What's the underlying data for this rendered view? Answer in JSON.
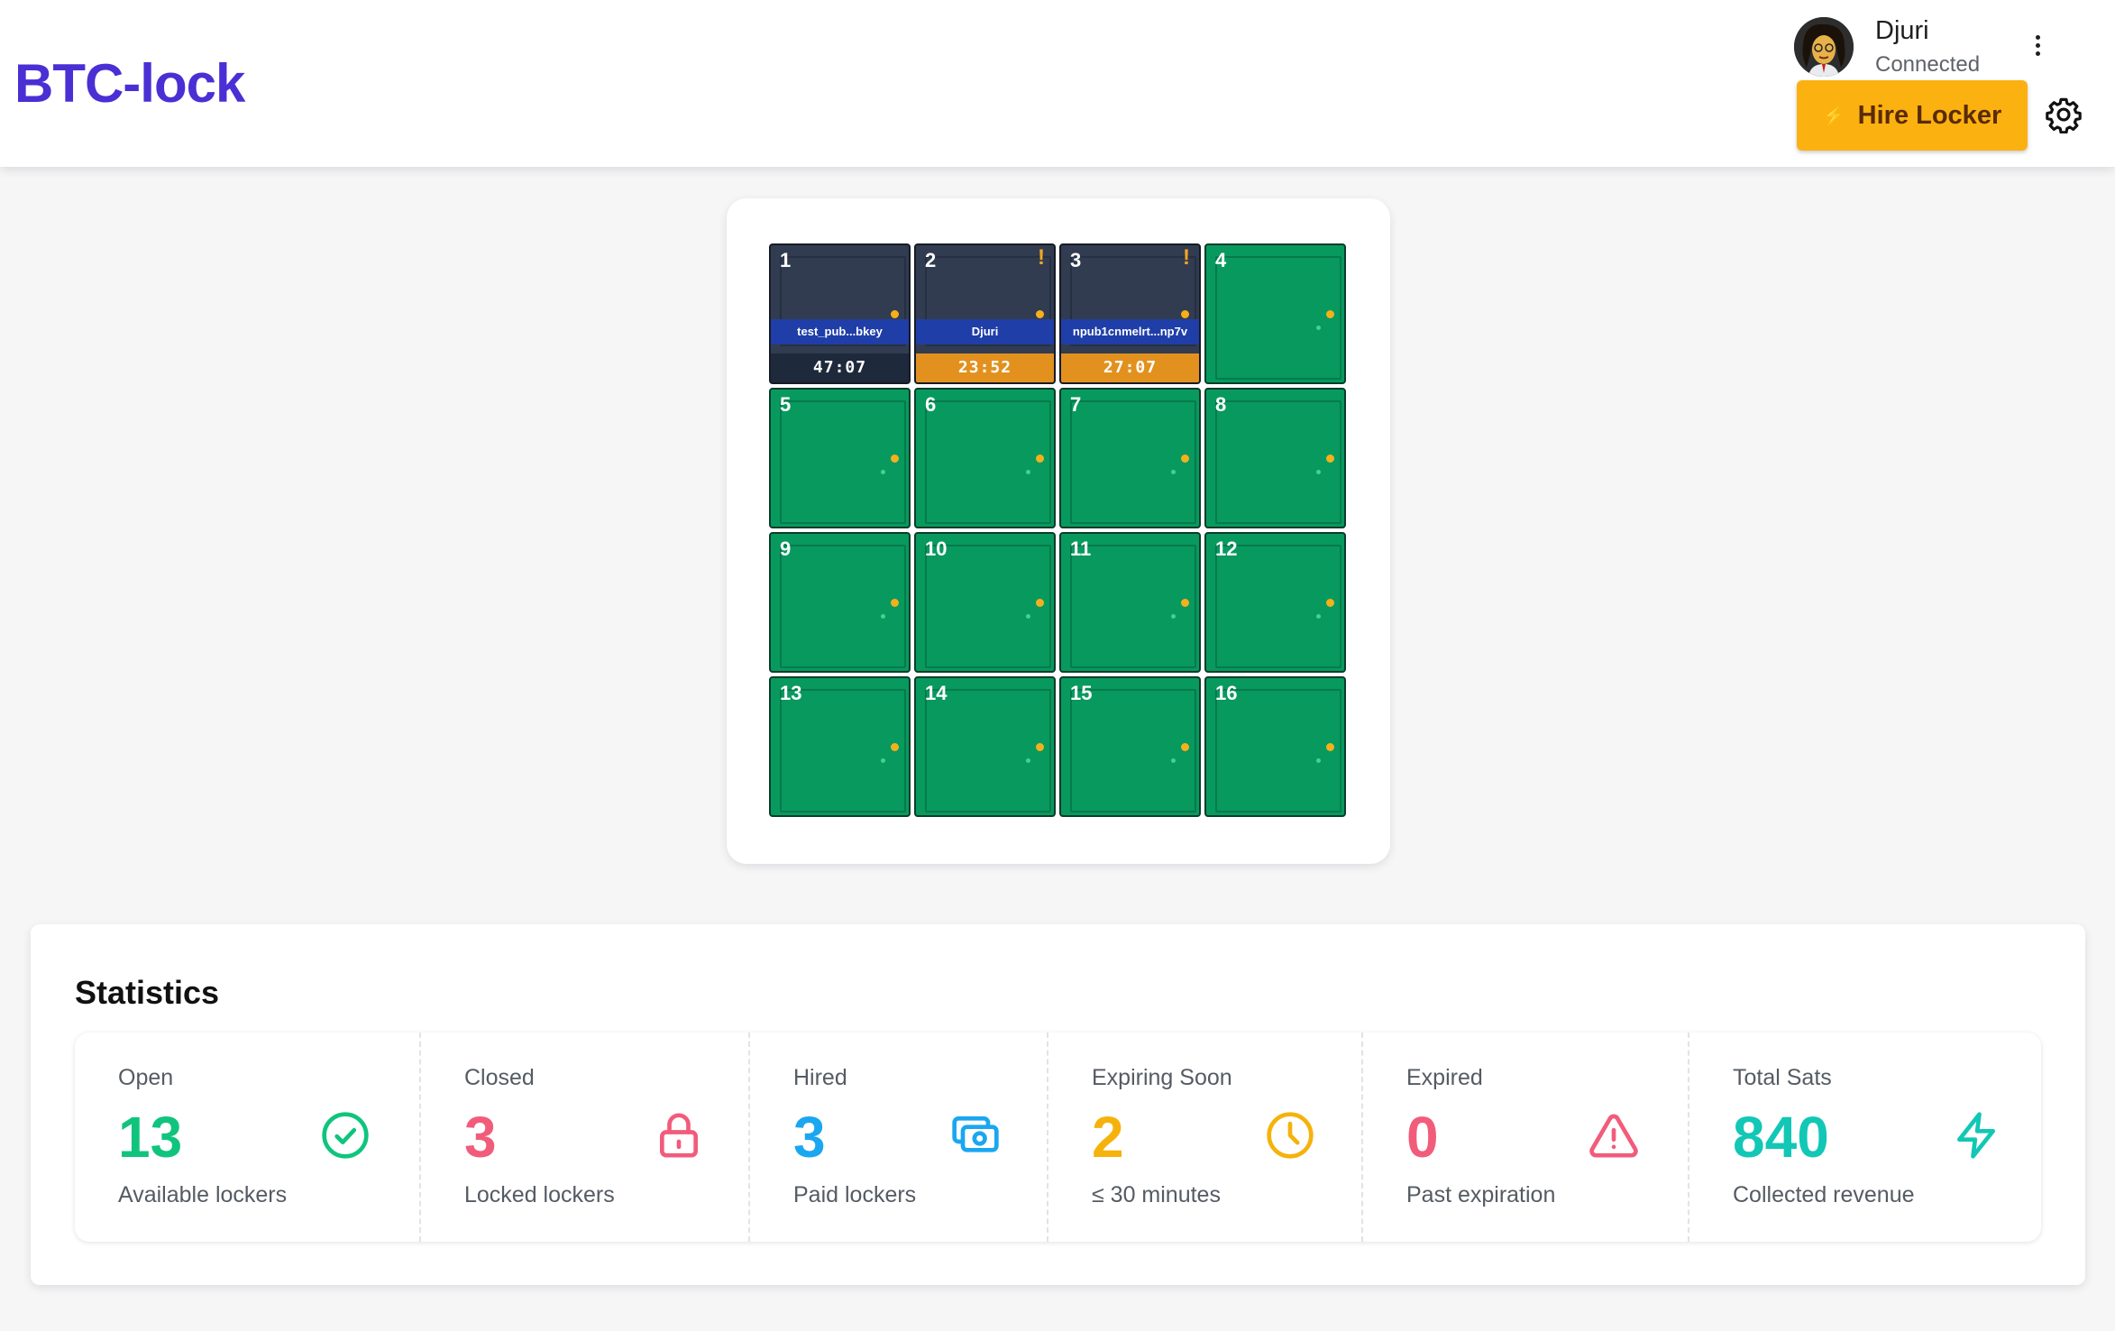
{
  "app": {
    "title": "BTC-lock"
  },
  "user": {
    "name": "Djuri",
    "status": "Connected"
  },
  "header": {
    "hire_label": "Hire Locker",
    "hire_icon": "⚡"
  },
  "lockers": [
    {
      "number": "1",
      "state": "locked",
      "owner": "test_pub...bkey",
      "timer": "47:07",
      "timer_style": "normal",
      "alert": ""
    },
    {
      "number": "2",
      "state": "locked",
      "owner": "Djuri",
      "timer": "23:52",
      "timer_style": "warn",
      "alert": "!"
    },
    {
      "number": "3",
      "state": "locked",
      "owner": "npub1cnmelrt...np7v",
      "timer": "27:07",
      "timer_style": "warn",
      "alert": "!"
    },
    {
      "number": "4",
      "state": "open"
    },
    {
      "number": "5",
      "state": "open"
    },
    {
      "number": "6",
      "state": "open"
    },
    {
      "number": "7",
      "state": "open"
    },
    {
      "number": "8",
      "state": "open"
    },
    {
      "number": "9",
      "state": "open"
    },
    {
      "number": "10",
      "state": "open"
    },
    {
      "number": "11",
      "state": "open"
    },
    {
      "number": "12",
      "state": "open"
    },
    {
      "number": "13",
      "state": "open"
    },
    {
      "number": "14",
      "state": "open"
    },
    {
      "number": "15",
      "state": "open"
    },
    {
      "number": "16",
      "state": "open"
    }
  ],
  "statistics": {
    "title": "Statistics",
    "items": [
      {
        "label": "Open",
        "value": "13",
        "sub": "Available lockers",
        "color": "#10c47d",
        "icon": "check-circle-icon"
      },
      {
        "label": "Closed",
        "value": "3",
        "sub": "Locked lockers",
        "color": "#f25c7b",
        "icon": "lock-icon"
      },
      {
        "label": "Hired",
        "value": "3",
        "sub": "Paid lockers",
        "color": "#1aa7f0",
        "icon": "cash-icon"
      },
      {
        "label": "Expiring Soon",
        "value": "2",
        "sub": "≤ 30 minutes",
        "color": "#f6b20c",
        "icon": "clock-icon"
      },
      {
        "label": "Expired",
        "value": "0",
        "sub": "Past expiration",
        "color": "#f25c7b",
        "icon": "warning-icon"
      },
      {
        "label": "Total Sats",
        "value": "840",
        "sub": "Collected revenue",
        "color": "#12c7b5",
        "icon": "bolt-icon"
      }
    ]
  }
}
